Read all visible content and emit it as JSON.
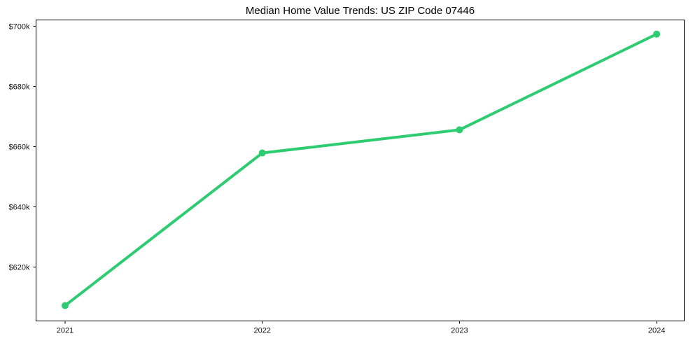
{
  "chart_data": {
    "type": "line",
    "title": "Median Home Value Trends: US ZIP Code 07446",
    "xlabel": "",
    "ylabel": "",
    "x": [
      "2021",
      "2022",
      "2023",
      "2024"
    ],
    "values_usd": [
      607200,
      657900,
      665600,
      697400
    ],
    "ylim": [
      602100,
      702100
    ],
    "yticks": {
      "values": [
        700000,
        680000,
        660000,
        640000,
        620000
      ],
      "labels": [
        "$700k",
        "$680k",
        "$660k",
        "$640k",
        "$620k"
      ]
    },
    "grid": false,
    "legend": false,
    "colors": {
      "line": "#2ecc71",
      "marker": "#2ecc71",
      "axis": "#000000",
      "tick_text": "#141414",
      "title_text": "#000000",
      "background": "#ffffff"
    }
  }
}
